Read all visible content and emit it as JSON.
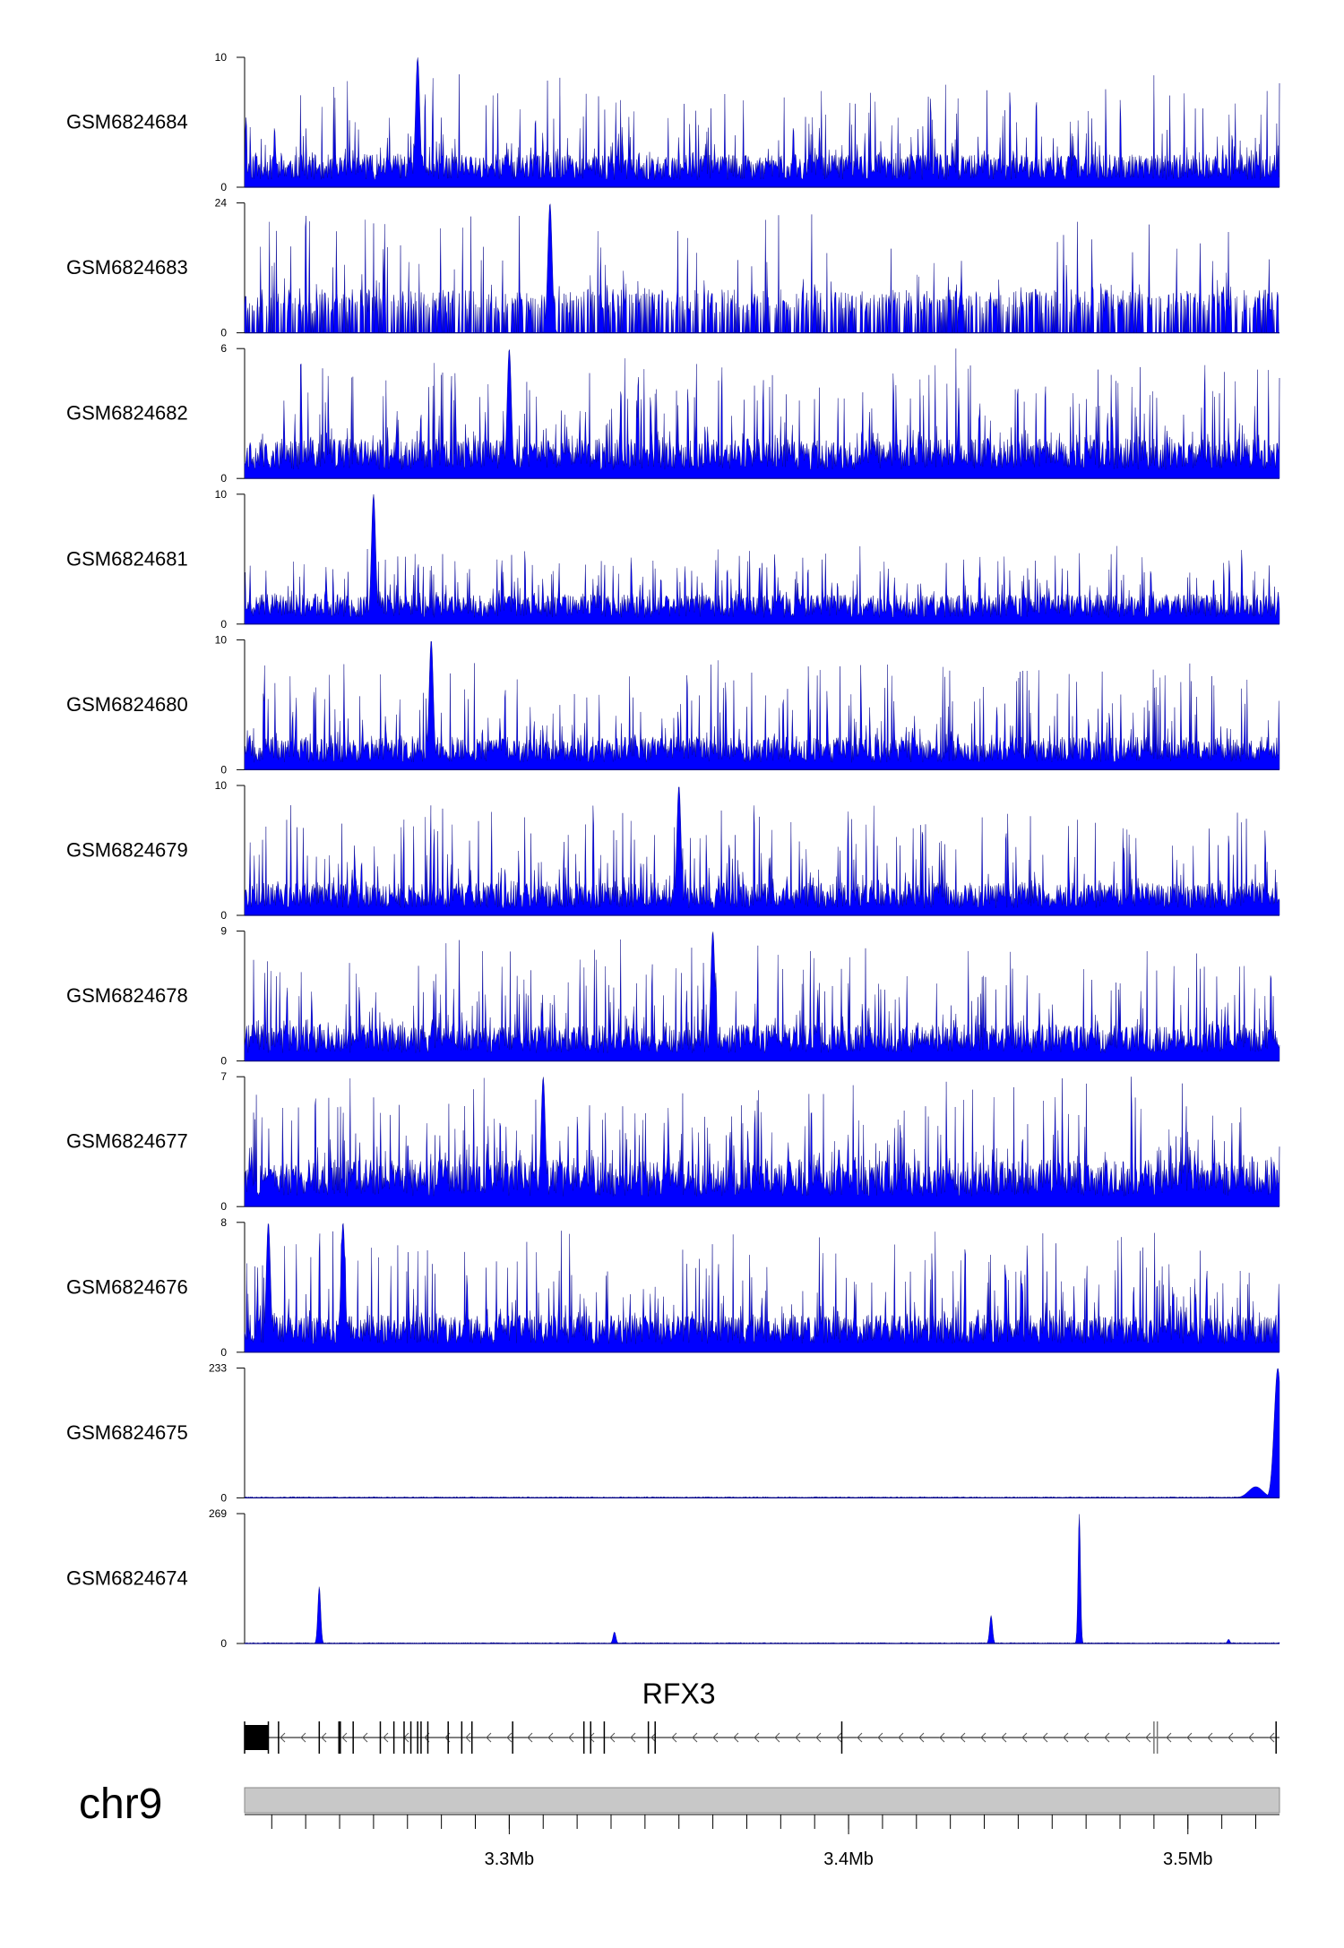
{
  "chart_data": {
    "type": "area",
    "chromosome": "chr9",
    "gene": {
      "name": "RFX3",
      "strand": "-"
    },
    "x_axis": {
      "range": [
        3.222,
        3.527
      ],
      "ticks": [
        {
          "value": 3.3,
          "label": "3.3Mb"
        },
        {
          "value": 3.4,
          "label": "3.4Mb"
        },
        {
          "value": 3.5,
          "label": "3.5Mb"
        }
      ]
    },
    "color": "#0000ff",
    "outline_color": "#000080",
    "tracks": [
      {
        "name": "GSM6824684",
        "ymin": 0,
        "ymax": 10,
        "profile": "noise",
        "base": 2.2,
        "spike": 6.5,
        "seed": 11,
        "peaks": [
          {
            "x": 3.273,
            "y": 10
          }
        ]
      },
      {
        "name": "GSM6824683",
        "ymin": 0,
        "ymax": 24,
        "profile": "sparse",
        "base": 8,
        "spike": 14,
        "seed": 23,
        "peaks": [
          {
            "x": 3.312,
            "y": 24
          }
        ]
      },
      {
        "name": "GSM6824682",
        "ymin": 0,
        "ymax": 6,
        "profile": "noise",
        "base": 1.6,
        "spike": 4.2,
        "seed": 37,
        "peaks": [
          {
            "x": 3.3,
            "y": 6
          }
        ]
      },
      {
        "name": "GSM6824681",
        "ymin": 0,
        "ymax": 10,
        "profile": "noise",
        "base": 2.0,
        "spike": 4.0,
        "seed": 41,
        "peaks": [
          {
            "x": 3.26,
            "y": 10
          }
        ]
      },
      {
        "name": "GSM6824680",
        "ymin": 0,
        "ymax": 10,
        "profile": "noise",
        "base": 2.2,
        "spike": 6.5,
        "seed": 53,
        "peaks": [
          {
            "x": 3.277,
            "y": 10
          }
        ]
      },
      {
        "name": "GSM6824679",
        "ymin": 0,
        "ymax": 10,
        "profile": "noise",
        "base": 2.2,
        "spike": 6.5,
        "seed": 67,
        "peaks": [
          {
            "x": 3.35,
            "y": 10
          }
        ]
      },
      {
        "name": "GSM6824678",
        "ymin": 0,
        "ymax": 9,
        "profile": "noise",
        "base": 2.2,
        "spike": 6.0,
        "seed": 71,
        "peaks": [
          {
            "x": 3.36,
            "y": 9
          }
        ]
      },
      {
        "name": "GSM6824677",
        "ymin": 0,
        "ymax": 7,
        "profile": "noise",
        "base": 2.2,
        "spike": 4.8,
        "seed": 83,
        "peaks": [
          {
            "x": 3.31,
            "y": 7
          }
        ]
      },
      {
        "name": "GSM6824676",
        "ymin": 0,
        "ymax": 8,
        "profile": "noise",
        "base": 2.0,
        "spike": 5.5,
        "seed": 97,
        "peaks": [
          {
            "x": 3.229,
            "y": 8
          },
          {
            "x": 3.251,
            "y": 8
          }
        ]
      },
      {
        "name": "GSM6824675",
        "ymin": 0,
        "ymax": 233,
        "profile": "flat",
        "base": 2,
        "seed": 101,
        "peaks": [
          {
            "x": 3.5265,
            "y": 233,
            "w": 0.0015
          },
          {
            "x": 3.52,
            "y": 20,
            "w": 0.003
          }
        ]
      },
      {
        "name": "GSM6824674",
        "ymin": 0,
        "ymax": 269,
        "profile": "flat",
        "base": 2,
        "seed": 113,
        "peaks": [
          {
            "x": 3.244,
            "y": 118,
            "w": 0.0006
          },
          {
            "x": 3.331,
            "y": 24,
            "w": 0.0006
          },
          {
            "x": 3.442,
            "y": 58,
            "w": 0.0006
          },
          {
            "x": 3.468,
            "y": 269,
            "w": 0.0005
          },
          {
            "x": 3.512,
            "y": 9,
            "w": 0.0005
          }
        ]
      }
    ],
    "exons": [
      3.222,
      3.229,
      3.232,
      3.244,
      3.25,
      3.25,
      3.254,
      3.262,
      3.266,
      3.269,
      3.271,
      3.273,
      3.274,
      3.276,
      3.282,
      3.286,
      3.289,
      3.301,
      3.322,
      3.324,
      3.328,
      3.341,
      3.343,
      3.398,
      3.49,
      3.491,
      3.526
    ],
    "coding_start": 3.229
  }
}
